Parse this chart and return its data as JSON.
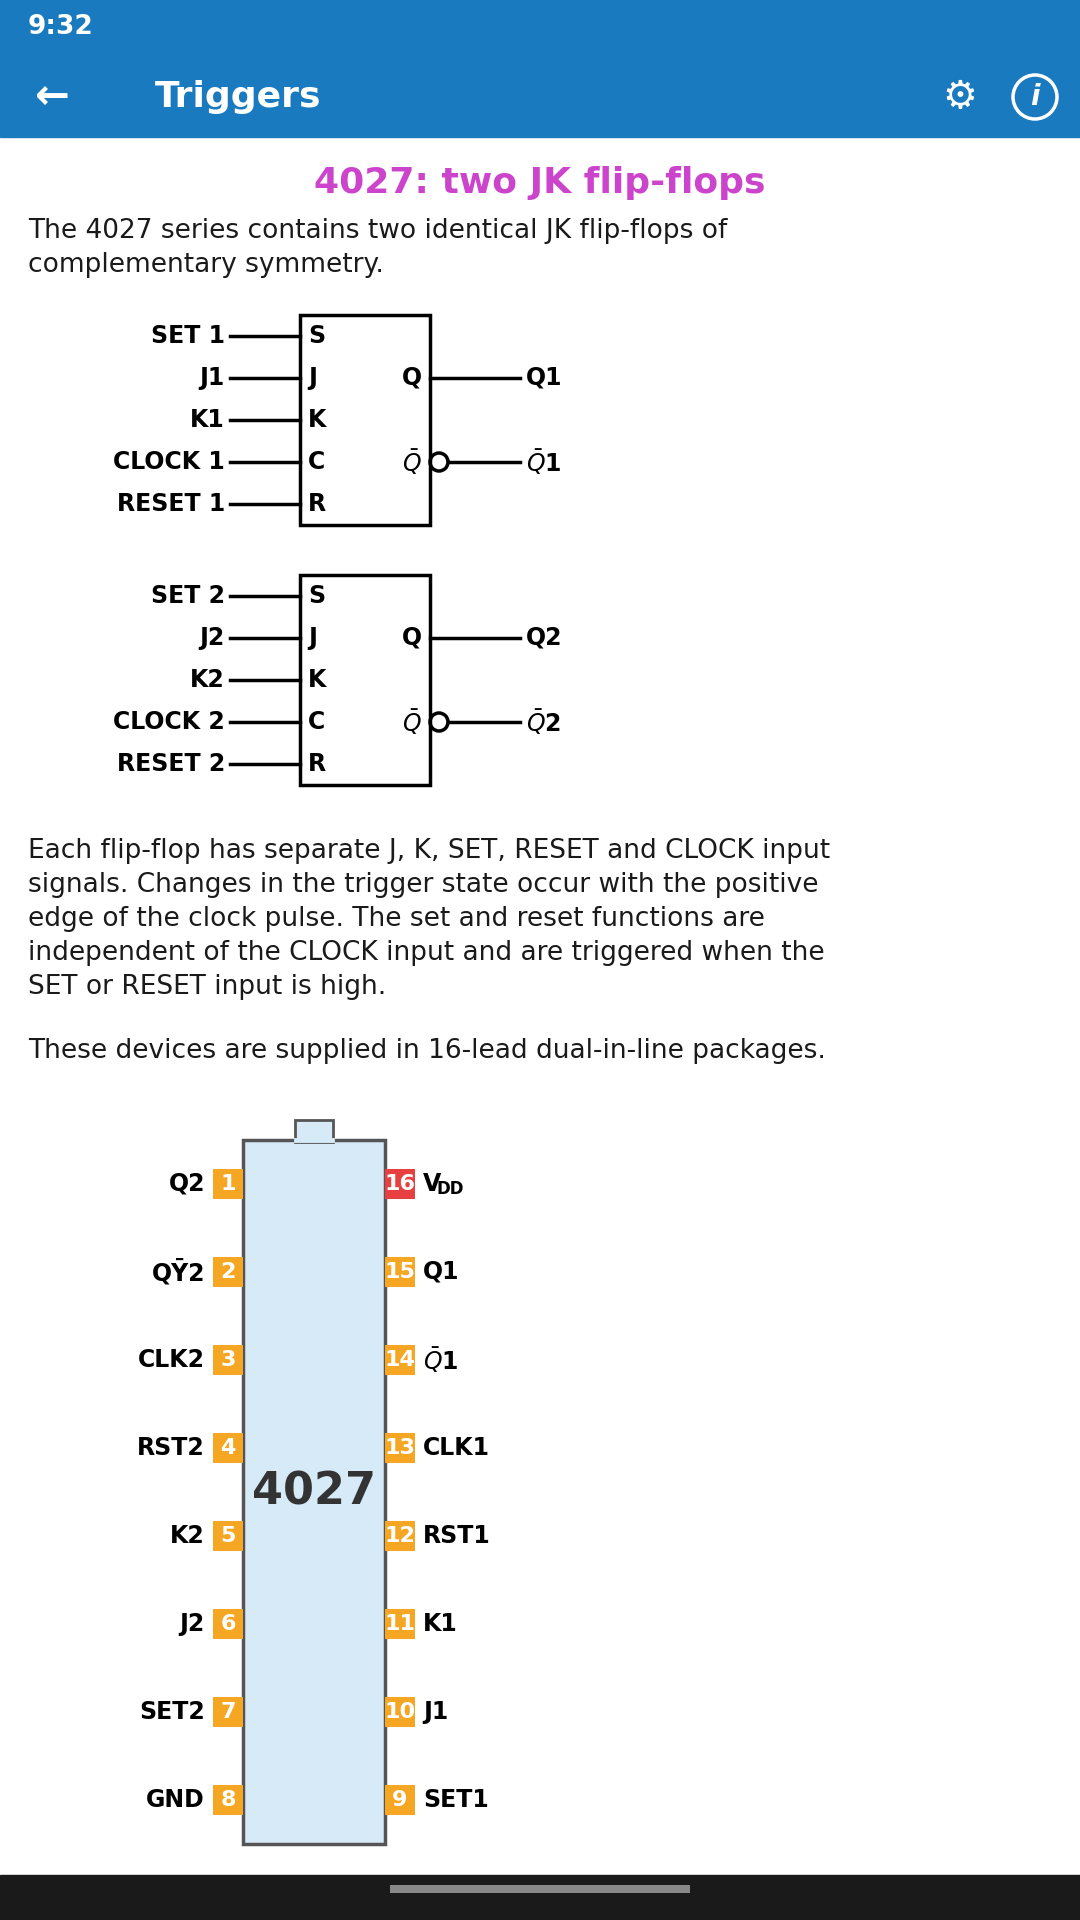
{
  "header_bg": "#1a7abf",
  "header_text": "Triggers",
  "title_text": "4027: two JK flip-flops",
  "title_color": "#cc44cc",
  "body_bg": "#ffffff",
  "para1_line1": "The 4027 series contains two identical JK flip-flops of",
  "para1_line2": "complementary symmetry.",
  "para2_line1": "Each flip-flop has separate J, K, SET, RESET and CLOCK input",
  "para2_line2": "signals. Changes in the trigger state occur with the positive",
  "para2_line3": "edge of the clock pulse. The set and reset functions are",
  "para2_line4": "independent of the CLOCK input and are triggered when the",
  "para2_line5": "SET or RESET input is high.",
  "para3": "These devices are supplied in 16-lead dual-in-line packages.",
  "chip_label": "4027",
  "left_pins": [
    "Q2",
    "QȲ2",
    "CLK2",
    "RST2",
    "K2",
    "J2",
    "SET2",
    "GND"
  ],
  "right_pins_vdd": "V",
  "right_pins_vdd_sub": "DD",
  "right_pins": [
    "Q1",
    "Q¯1",
    "CLK1",
    "RST1",
    "K1",
    "J1",
    "SET1"
  ],
  "left_numbers": [
    "1",
    "2",
    "3",
    "4",
    "5",
    "6",
    "7",
    "8"
  ],
  "right_numbers": [
    "16",
    "15",
    "14",
    "13",
    "12",
    "11",
    "10",
    "9"
  ],
  "num_bg_orange": "#f5a623",
  "num_bg_red": "#e84040",
  "text_color": "#1a1a1a",
  "lw": 2.5
}
